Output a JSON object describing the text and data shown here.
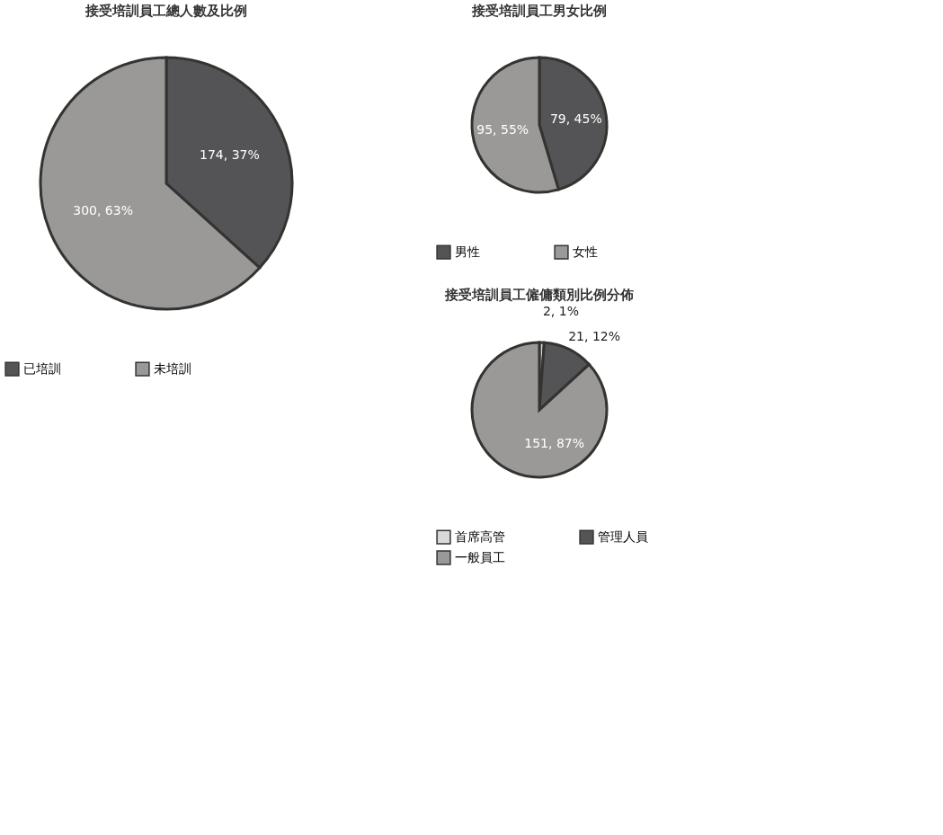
{
  "chart_data": [
    {
      "type": "pie",
      "title": "接受培訓員工總人數及比例",
      "categories": [
        "已培訓",
        "未培訓"
      ],
      "values": [
        174,
        300
      ],
      "colors": [
        "#545456",
        "#9a9998"
      ],
      "value_labels": [
        "174, 37%",
        "300, 63%"
      ],
      "legend": "bottom"
    },
    {
      "type": "pie",
      "title": "接受培訓員工男女比例",
      "categories": [
        "男性",
        "女性"
      ],
      "values": [
        79,
        95
      ],
      "colors": [
        "#545456",
        "#9a9998"
      ],
      "value_labels": [
        "79, 45%",
        "95, 55%"
      ],
      "legend": "bottom"
    },
    {
      "type": "pie",
      "title": "接受培訓員工僱傭類別比例分佈",
      "categories": [
        "首席高管",
        "管理人員",
        "一般員工"
      ],
      "values": [
        2,
        21,
        151
      ],
      "colors": [
        "#d9d9d9",
        "#545456",
        "#9a9998"
      ],
      "value_labels": [
        "2, 1%",
        "21, 12%",
        "151, 87%"
      ],
      "legend": "bottom"
    }
  ]
}
